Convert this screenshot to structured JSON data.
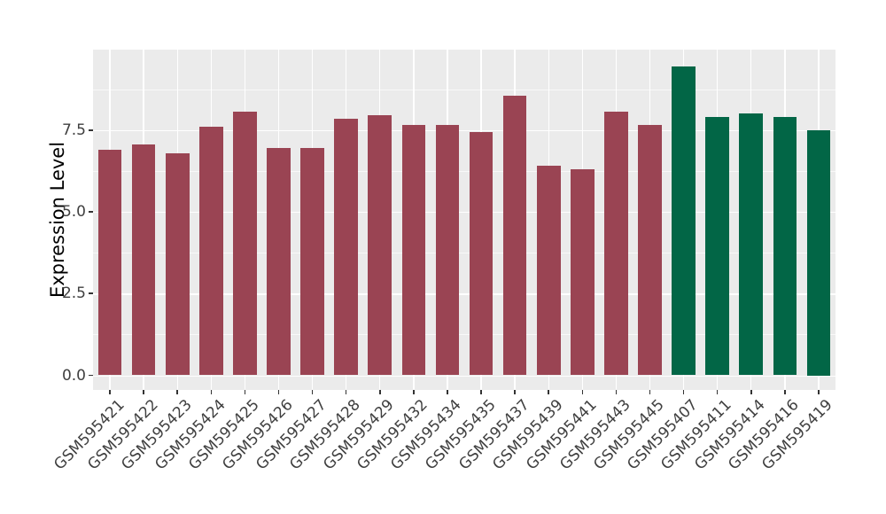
{
  "chart_data": {
    "type": "bar",
    "title": "",
    "xlabel": "",
    "ylabel": "Expression Level",
    "categories": [
      "GSM595421",
      "GSM595422",
      "GSM595423",
      "GSM595424",
      "GSM595425",
      "GSM595426",
      "GSM595427",
      "GSM595428",
      "GSM595429",
      "GSM595432",
      "GSM595434",
      "GSM595435",
      "GSM595437",
      "GSM595439",
      "GSM595441",
      "GSM595443",
      "GSM595445",
      "GSM595407",
      "GSM595411",
      "GSM595414",
      "GSM595416",
      "GSM595419"
    ],
    "values": [
      6.9,
      7.05,
      6.8,
      7.6,
      8.05,
      6.95,
      6.95,
      7.85,
      7.95,
      7.65,
      7.65,
      7.45,
      8.55,
      6.4,
      6.3,
      8.05,
      7.65,
      9.45,
      7.9,
      8.0,
      7.9,
      7.5
    ],
    "bar_colors": [
      "#9A4453",
      "#9A4453",
      "#9A4453",
      "#9A4453",
      "#9A4453",
      "#9A4453",
      "#9A4453",
      "#9A4453",
      "#9A4453",
      "#9A4453",
      "#9A4453",
      "#9A4453",
      "#9A4453",
      "#9A4453",
      "#9A4453",
      "#9A4453",
      "#9A4453",
      "#026646",
      "#026646",
      "#026646",
      "#026646",
      "#026646"
    ],
    "palette": {
      "maroon": "#9A4453",
      "green": "#026646"
    },
    "yticks": [
      0.0,
      2.5,
      5.0,
      7.5
    ],
    "ytick_labels": [
      "0.0",
      "2.5",
      "5.0",
      "7.5"
    ],
    "minor_yticks": [
      1.25,
      3.75,
      6.25,
      8.75
    ],
    "ylim": [
      -0.45,
      9.95
    ],
    "grid": true,
    "legend": "none",
    "panel_bg": "#EBEBEB",
    "grid_color": "#FFFFFF",
    "tick_mark_color": "#333333",
    "tick_text_color": "#404040",
    "axis_title_color": "#000000"
  }
}
